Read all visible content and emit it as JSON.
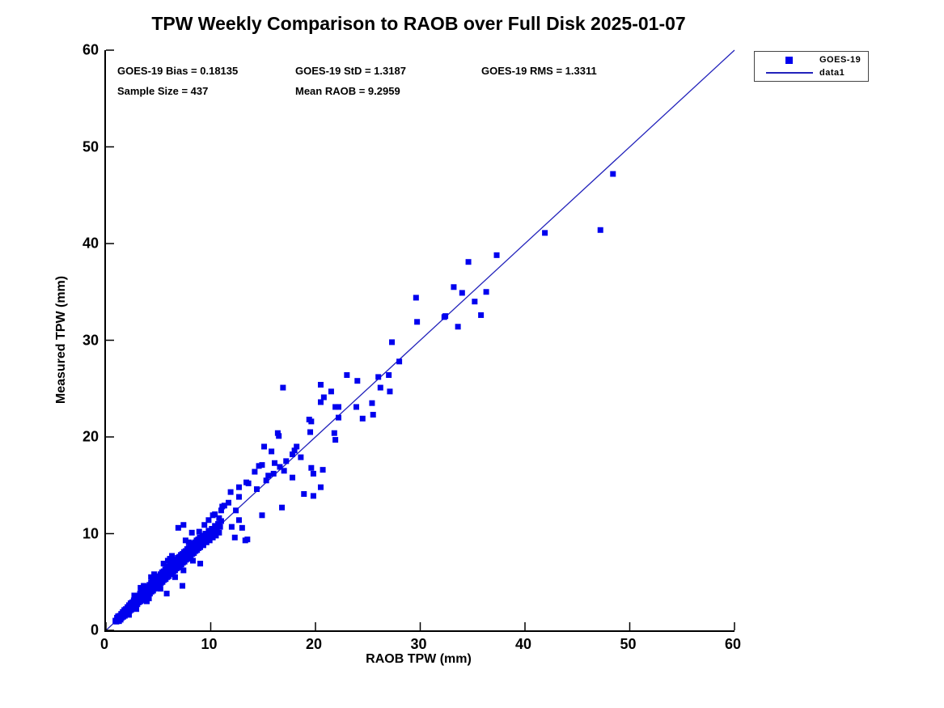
{
  "title": "TPW Weekly Comparison to RAOB over Full Disk 2025-01-07",
  "stats": {
    "bias_label": "GOES-19 Bias = 0.18135",
    "std_label": "GOES-19 StD = 1.3187",
    "rms_label": "GOES-19 RMS = 1.3311",
    "sample_label": "Sample Size = 437",
    "mean_raob_label": "Mean RAOB = 9.2959",
    "bias": 0.18135,
    "std": 1.3187,
    "rms": 1.3311,
    "sample_size": 437,
    "mean_raob": 9.2959
  },
  "legend": {
    "items": [
      {
        "label": "GOES-19",
        "swatch": "square-marker"
      },
      {
        "label": "data1",
        "swatch": "line"
      }
    ]
  },
  "colors": {
    "marker": "#0000EE",
    "line": "#2222BB",
    "axis": "#000000",
    "background": "#ffffff"
  },
  "chart_data": {
    "type": "scatter",
    "title": "TPW Weekly Comparison to RAOB over Full Disk 2025-01-07",
    "xlabel": "RAOB TPW (mm)",
    "ylabel": "Measured TPW (mm)",
    "xlim": [
      0,
      60
    ],
    "ylim": [
      0,
      60
    ],
    "xticks": [
      0,
      10,
      20,
      30,
      40,
      50,
      60
    ],
    "yticks": [
      0,
      10,
      20,
      30,
      40,
      50,
      60
    ],
    "grid": false,
    "legend_position": "outside-top-right",
    "series": [
      {
        "name": "GOES-19",
        "type": "scatter",
        "marker": "square",
        "note": "approximate digitized positions of the 437 plotted samples",
        "points": [
          [
            0.9,
            1.0
          ],
          [
            1.0,
            0.9
          ],
          [
            1.05,
            1.3
          ],
          [
            1.1,
            1.0
          ],
          [
            1.15,
            1.45
          ],
          [
            1.2,
            1.1
          ],
          [
            1.25,
            0.95
          ],
          [
            1.3,
            1.5
          ],
          [
            1.35,
            1.2
          ],
          [
            1.4,
            1.1
          ],
          [
            1.45,
            1.7
          ],
          [
            1.5,
            1.3
          ],
          [
            1.55,
            1.5
          ],
          [
            1.6,
            1.9
          ],
          [
            1.65,
            1.4
          ],
          [
            1.7,
            1.6
          ],
          [
            1.75,
            2.1
          ],
          [
            1.8,
            1.5
          ],
          [
            1.85,
            1.9
          ],
          [
            1.9,
            2.2
          ],
          [
            1.95,
            1.7
          ],
          [
            2.0,
            2.0
          ],
          [
            2.05,
            2.4
          ],
          [
            2.1,
            1.8
          ],
          [
            2.15,
            2.2
          ],
          [
            2.2,
            2.6
          ],
          [
            2.25,
            2.0
          ],
          [
            2.3,
            2.4
          ],
          [
            2.35,
            2.8
          ],
          [
            2.4,
            2.1
          ],
          [
            2.45,
            2.5
          ],
          [
            2.5,
            2.9
          ],
          [
            2.55,
            2.3
          ],
          [
            2.6,
            2.7
          ],
          [
            2.65,
            3.1
          ],
          [
            2.7,
            2.4
          ],
          [
            2.75,
            2.9
          ],
          [
            2.8,
            3.3
          ],
          [
            2.85,
            2.6
          ],
          [
            2.9,
            3.0
          ],
          [
            2.95,
            3.4
          ],
          [
            3.0,
            2.7
          ],
          [
            3.05,
            3.2
          ],
          [
            3.1,
            3.6
          ],
          [
            3.15,
            2.9
          ],
          [
            3.2,
            3.3
          ],
          [
            3.25,
            3.8
          ],
          [
            3.3,
            3.0
          ],
          [
            3.35,
            3.5
          ],
          [
            3.4,
            3.9
          ],
          [
            3.45,
            3.1
          ],
          [
            3.5,
            3.6
          ],
          [
            3.55,
            4.1
          ],
          [
            3.6,
            3.2
          ],
          [
            3.65,
            3.8
          ],
          [
            3.7,
            4.2
          ],
          [
            3.75,
            3.4
          ],
          [
            3.8,
            3.9
          ],
          [
            3.85,
            4.4
          ],
          [
            3.9,
            3.5
          ],
          [
            3.95,
            4.1
          ],
          [
            4.0,
            4.5
          ],
          [
            4.05,
            3.7
          ],
          [
            4.1,
            4.2
          ],
          [
            4.15,
            4.7
          ],
          [
            4.2,
            3.8
          ],
          [
            4.25,
            4.4
          ],
          [
            4.3,
            4.9
          ],
          [
            4.35,
            4.0
          ],
          [
            4.4,
            4.5
          ],
          [
            4.45,
            5.0
          ],
          [
            4.5,
            4.1
          ],
          [
            4.55,
            4.7
          ],
          [
            4.6,
            5.2
          ],
          [
            4.65,
            4.3
          ],
          [
            4.7,
            4.8
          ],
          [
            4.75,
            5.3
          ],
          [
            4.8,
            4.4
          ],
          [
            4.85,
            5.0
          ],
          [
            4.9,
            5.5
          ],
          [
            4.95,
            4.6
          ],
          [
            5.0,
            5.1
          ],
          [
            5.05,
            5.6
          ],
          [
            5.1,
            4.7
          ],
          [
            5.15,
            5.3
          ],
          [
            5.2,
            5.8
          ],
          [
            5.25,
            4.9
          ],
          [
            5.3,
            5.4
          ],
          [
            5.35,
            6.0
          ],
          [
            5.4,
            5.0
          ],
          [
            5.45,
            5.6
          ],
          [
            5.5,
            6.1
          ],
          [
            5.55,
            5.2
          ],
          [
            5.6,
            5.8
          ],
          [
            5.65,
            6.3
          ],
          [
            5.7,
            5.3
          ],
          [
            5.75,
            5.9
          ],
          [
            5.8,
            6.4
          ],
          [
            5.85,
            5.5
          ],
          [
            5.9,
            6.0
          ],
          [
            5.95,
            6.6
          ],
          [
            6.0,
            5.6
          ],
          [
            6.05,
            6.2
          ],
          [
            6.1,
            6.7
          ],
          [
            6.15,
            5.8
          ],
          [
            6.2,
            6.3
          ],
          [
            6.25,
            6.9
          ],
          [
            6.3,
            5.9
          ],
          [
            6.35,
            6.5
          ],
          [
            6.4,
            7.0
          ],
          [
            6.45,
            6.1
          ],
          [
            6.5,
            6.6
          ],
          [
            6.55,
            7.2
          ],
          [
            6.6,
            6.2
          ],
          [
            6.65,
            6.8
          ],
          [
            6.7,
            7.3
          ],
          [
            6.75,
            6.4
          ],
          [
            6.8,
            6.9
          ],
          [
            6.85,
            7.5
          ],
          [
            6.9,
            6.5
          ],
          [
            6.95,
            7.1
          ],
          [
            7.0,
            7.6
          ],
          [
            7.05,
            6.7
          ],
          [
            7.1,
            7.2
          ],
          [
            7.15,
            7.8
          ],
          [
            7.2,
            6.8
          ],
          [
            7.25,
            7.4
          ],
          [
            7.3,
            7.9
          ],
          [
            7.35,
            7.0
          ],
          [
            7.4,
            7.5
          ],
          [
            7.45,
            8.1
          ],
          [
            7.5,
            7.1
          ],
          [
            7.55,
            7.7
          ],
          [
            7.6,
            8.2
          ],
          [
            7.65,
            7.3
          ],
          [
            7.7,
            7.8
          ],
          [
            7.75,
            8.4
          ],
          [
            7.8,
            7.4
          ],
          [
            7.85,
            8.0
          ],
          [
            7.9,
            8.5
          ],
          [
            7.95,
            7.6
          ],
          [
            8.0,
            8.1
          ],
          [
            8.05,
            8.7
          ],
          [
            8.1,
            7.7
          ],
          [
            8.15,
            8.3
          ],
          [
            8.2,
            8.8
          ],
          [
            8.25,
            7.9
          ],
          [
            8.3,
            8.4
          ],
          [
            8.35,
            9.0
          ],
          [
            8.4,
            8.0
          ],
          [
            8.45,
            8.6
          ],
          [
            8.5,
            9.1
          ],
          [
            8.55,
            8.2
          ],
          [
            8.6,
            8.7
          ],
          [
            8.65,
            9.3
          ],
          [
            8.7,
            8.3
          ],
          [
            8.75,
            8.9
          ],
          [
            8.8,
            9.4
          ],
          [
            8.85,
            8.5
          ],
          [
            8.9,
            9.0
          ],
          [
            8.95,
            9.6
          ],
          [
            9.0,
            8.6
          ],
          [
            9.1,
            9.2
          ],
          [
            9.2,
            9.8
          ],
          [
            9.3,
            8.8
          ],
          [
            9.4,
            9.4
          ],
          [
            9.5,
            10.0
          ],
          [
            9.6,
            9.1
          ],
          [
            9.7,
            9.7
          ],
          [
            9.8,
            10.3
          ],
          [
            9.9,
            9.3
          ],
          [
            10.0,
            9.9
          ],
          [
            10.1,
            10.5
          ],
          [
            10.2,
            9.6
          ],
          [
            10.3,
            10.2
          ],
          [
            10.4,
            10.8
          ],
          [
            10.5,
            9.8
          ],
          [
            10.6,
            10.4
          ],
          [
            10.7,
            11.0
          ],
          [
            10.8,
            10.1
          ],
          [
            10.9,
            10.7
          ],
          [
            11.0,
            11.3
          ],
          [
            2.2,
            1.6
          ],
          [
            2.7,
            3.6
          ],
          [
            2.9,
            2.2
          ],
          [
            3.3,
            4.4
          ],
          [
            3.6,
            4.6
          ],
          [
            3.9,
            3.0
          ],
          [
            4.1,
            3.3
          ],
          [
            4.3,
            5.5
          ],
          [
            4.6,
            5.8
          ],
          [
            5.2,
            4.3
          ],
          [
            5.5,
            6.9
          ],
          [
            5.8,
            3.8
          ],
          [
            5.9,
            7.2
          ],
          [
            6.1,
            7.4
          ],
          [
            6.3,
            7.7
          ],
          [
            6.6,
            5.5
          ],
          [
            6.9,
            10.6
          ],
          [
            7.3,
            4.6
          ],
          [
            7.4,
            6.2
          ],
          [
            7.4,
            10.9
          ],
          [
            7.6,
            9.3
          ],
          [
            7.9,
            9.1
          ],
          [
            8.2,
            10.1
          ],
          [
            8.3,
            7.2
          ],
          [
            8.9,
            10.2
          ],
          [
            9.0,
            6.9
          ],
          [
            9.4,
            10.9
          ],
          [
            9.8,
            11.4
          ],
          [
            10.2,
            11.9
          ],
          [
            10.4,
            12.0
          ],
          [
            10.8,
            11.6
          ],
          [
            11.0,
            12.4
          ],
          [
            11.1,
            12.8
          ],
          [
            11.3,
            12.9
          ],
          [
            11.7,
            13.2
          ],
          [
            11.9,
            14.3
          ],
          [
            12.0,
            10.7
          ],
          [
            12.3,
            9.6
          ],
          [
            12.4,
            12.4
          ],
          [
            12.7,
            11.4
          ],
          [
            12.7,
            13.8
          ],
          [
            12.7,
            14.8
          ],
          [
            13.0,
            10.6
          ],
          [
            13.3,
            9.3
          ],
          [
            13.4,
            15.3
          ],
          [
            13.5,
            9.4
          ],
          [
            13.6,
            15.2
          ],
          [
            14.2,
            16.4
          ],
          [
            14.4,
            14.6
          ],
          [
            14.6,
            17.0
          ],
          [
            14.9,
            17.1
          ],
          [
            14.9,
            11.9
          ],
          [
            15.1,
            19.0
          ],
          [
            15.3,
            15.5
          ],
          [
            15.5,
            16.0
          ],
          [
            15.8,
            18.5
          ],
          [
            16.0,
            16.2
          ],
          [
            16.1,
            17.3
          ],
          [
            16.4,
            20.4
          ],
          [
            16.5,
            20.1
          ],
          [
            16.6,
            16.9
          ],
          [
            16.8,
            12.7
          ],
          [
            16.9,
            25.1
          ],
          [
            17.0,
            16.5
          ],
          [
            17.2,
            17.5
          ],
          [
            17.8,
            18.2
          ],
          [
            17.8,
            15.8
          ],
          [
            18.0,
            18.6
          ],
          [
            18.2,
            19.0
          ],
          [
            18.6,
            17.9
          ],
          [
            18.9,
            14.1
          ],
          [
            19.4,
            21.8
          ],
          [
            19.5,
            20.5
          ],
          [
            19.6,
            21.6
          ],
          [
            19.6,
            16.8
          ],
          [
            19.8,
            16.2
          ],
          [
            19.8,
            13.9
          ],
          [
            20.5,
            25.4
          ],
          [
            20.5,
            23.6
          ],
          [
            20.5,
            14.8
          ],
          [
            20.7,
            16.6
          ],
          [
            20.8,
            24.1
          ],
          [
            21.5,
            24.7
          ],
          [
            21.8,
            20.4
          ],
          [
            21.9,
            23.1
          ],
          [
            21.9,
            19.7
          ],
          [
            22.2,
            23.1
          ],
          [
            22.2,
            22.0
          ],
          [
            23.0,
            26.4
          ],
          [
            23.9,
            23.1
          ],
          [
            24.0,
            25.8
          ],
          [
            24.5,
            21.9
          ],
          [
            25.4,
            23.5
          ],
          [
            25.5,
            22.3
          ],
          [
            26.0,
            26.2
          ],
          [
            26.2,
            25.1
          ],
          [
            27.0,
            26.4
          ],
          [
            27.1,
            24.7
          ],
          [
            27.3,
            29.8
          ],
          [
            28.0,
            27.8
          ],
          [
            29.6,
            34.4
          ],
          [
            29.7,
            31.9
          ],
          [
            32.3,
            32.4
          ],
          [
            32.4,
            32.5
          ],
          [
            33.2,
            35.5
          ],
          [
            33.6,
            31.4
          ],
          [
            34.0,
            34.9
          ],
          [
            34.6,
            38.1
          ],
          [
            35.2,
            34.0
          ],
          [
            35.8,
            32.6
          ],
          [
            36.3,
            35.0
          ],
          [
            37.3,
            38.8
          ],
          [
            41.9,
            41.1
          ],
          [
            47.2,
            41.4
          ],
          [
            48.4,
            47.2
          ]
        ]
      },
      {
        "name": "data1",
        "type": "line",
        "points": [
          [
            0,
            0
          ],
          [
            60,
            60
          ]
        ]
      }
    ]
  }
}
